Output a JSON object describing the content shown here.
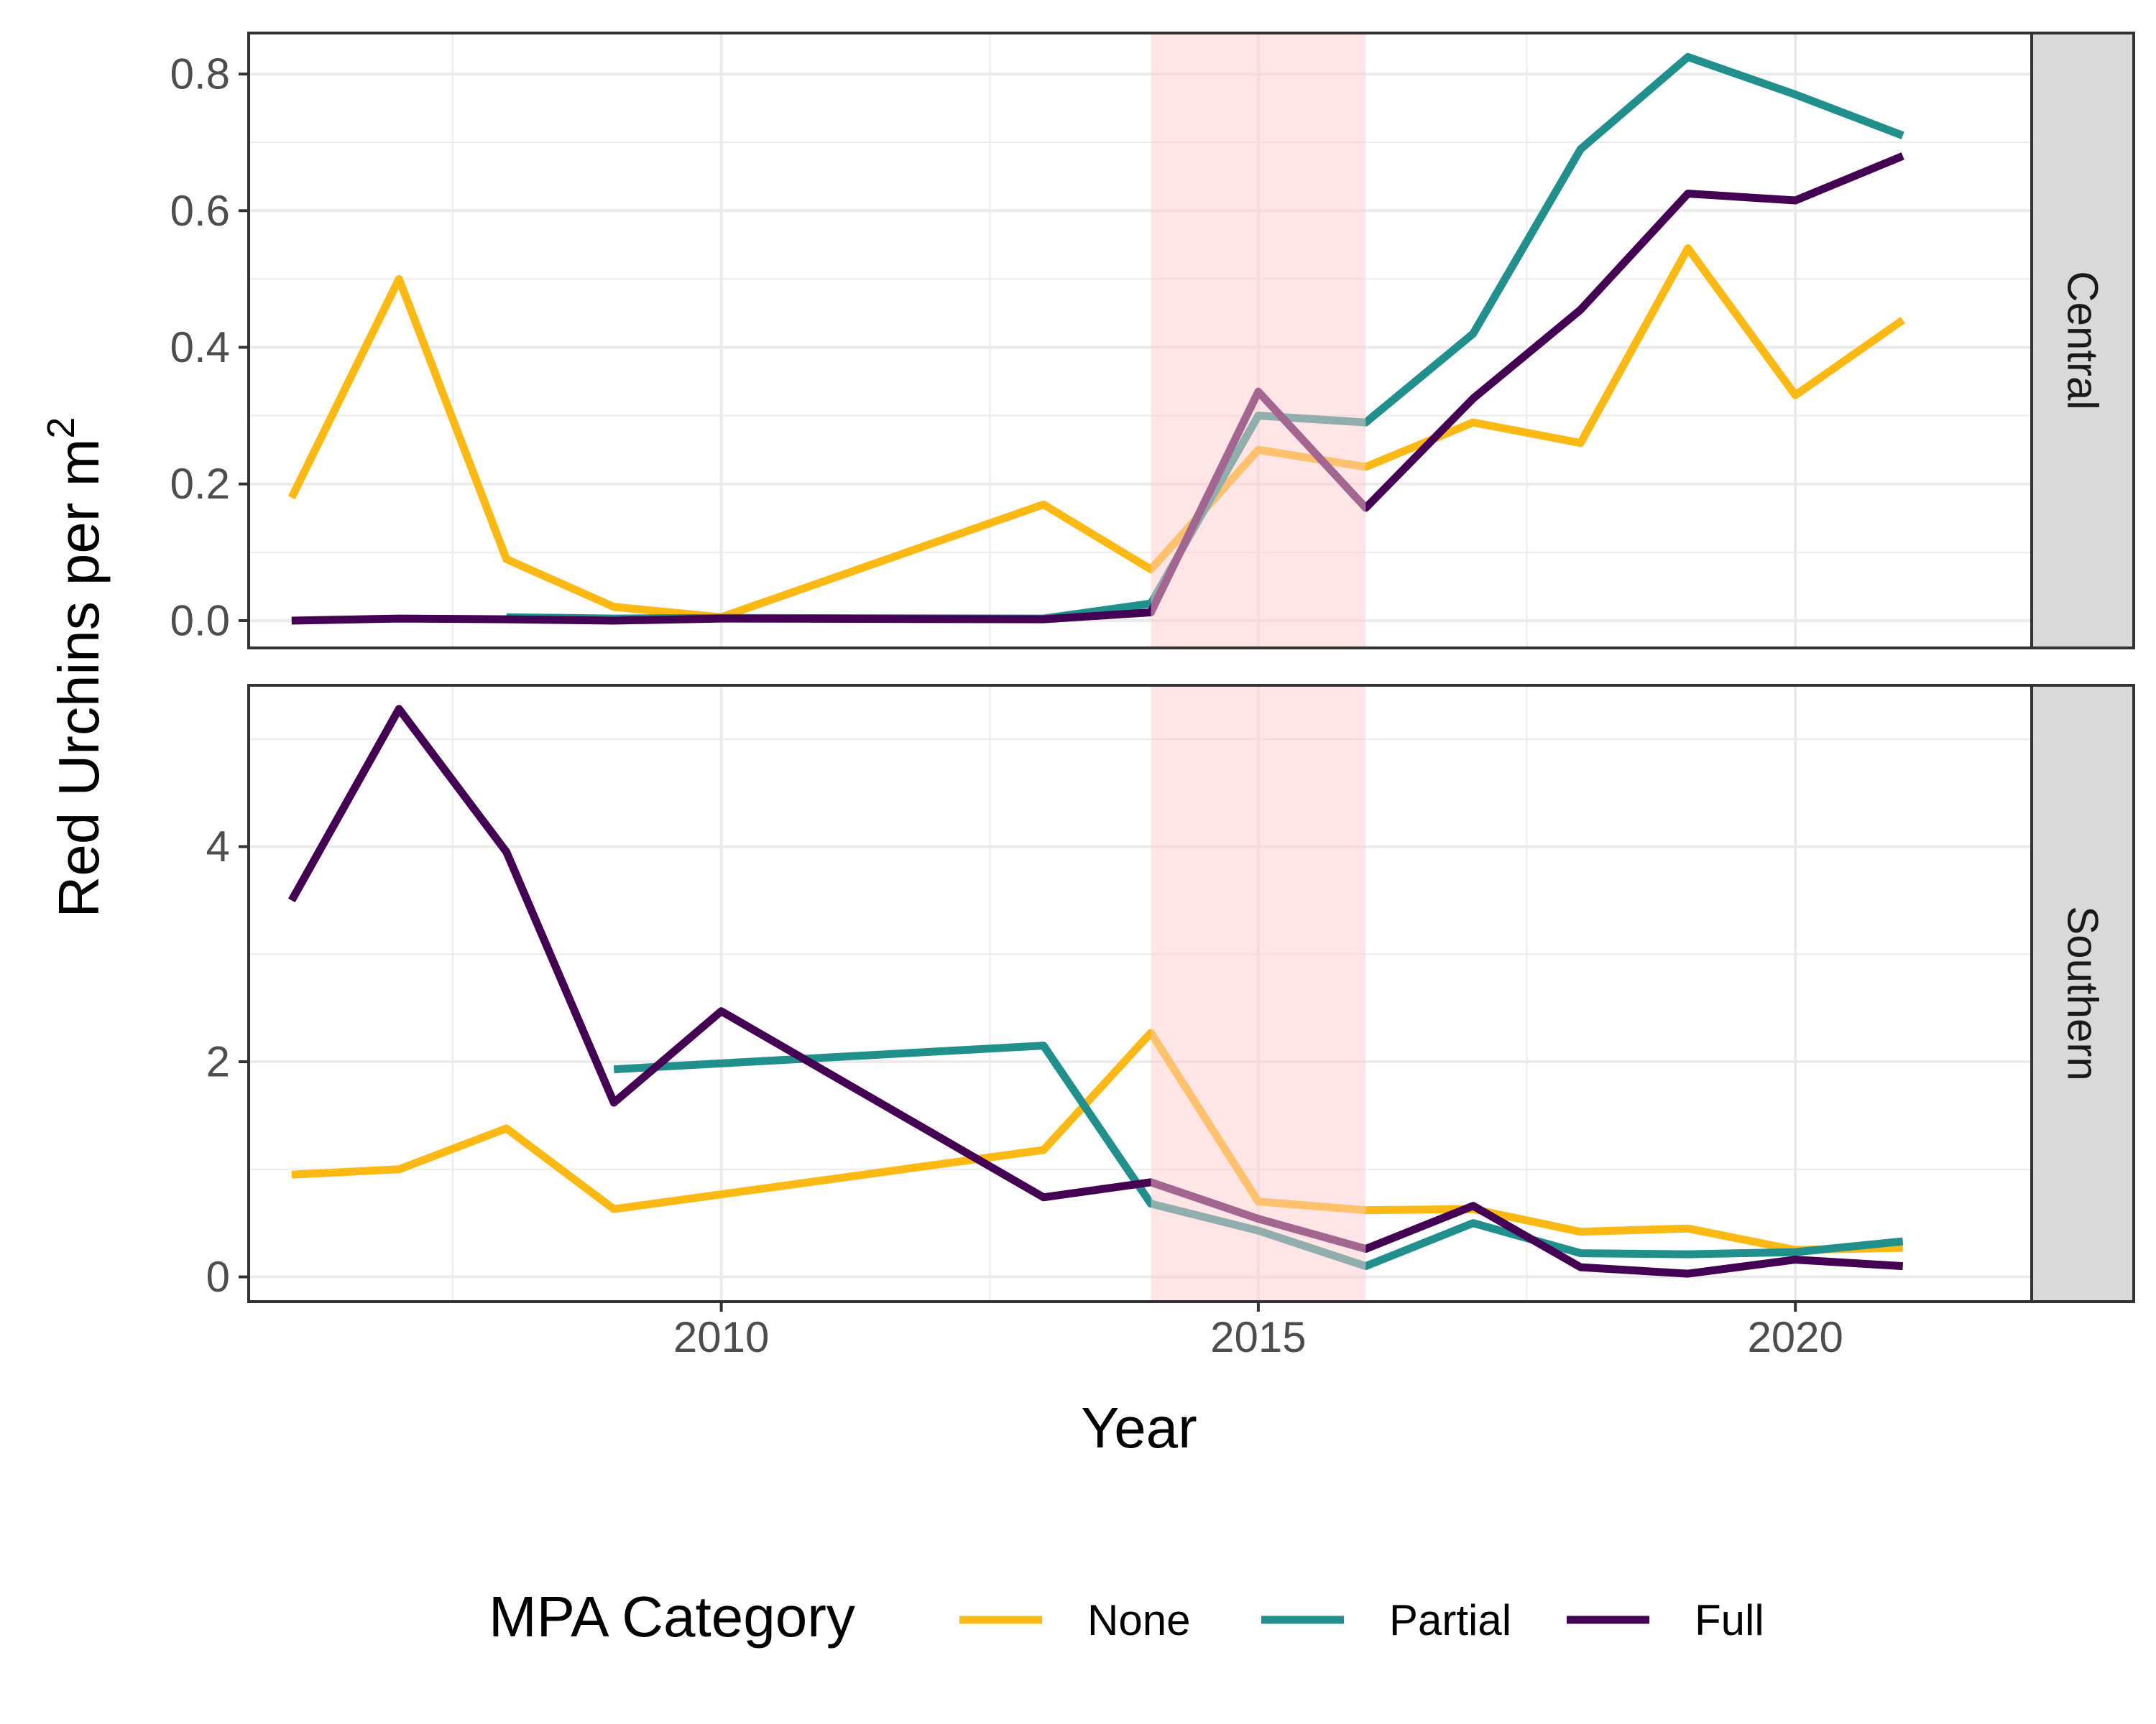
{
  "chart_data": {
    "type": "line",
    "xlabel": "Year",
    "ylabel_main": "Red Urchins per m",
    "ylabel_sup": "2",
    "xlim": [
      2005.6,
      2022.2
    ],
    "x_ticks": [
      2010,
      2015,
      2020
    ],
    "highlight": {
      "from": 2014,
      "to": 2016,
      "color": "#ffcccc"
    },
    "legend": {
      "title": "MPA Category",
      "position": "bottom"
    },
    "series_styles": [
      {
        "name": "None",
        "color": "#FDB913"
      },
      {
        "name": "Partial",
        "color": "#21908C"
      },
      {
        "name": "Full",
        "color": "#440154"
      }
    ],
    "panels": [
      {
        "label": "Central",
        "ylim": [
          -0.04,
          0.86
        ],
        "y_ticks": [
          0.0,
          0.2,
          0.4,
          0.6,
          0.8
        ],
        "y_tick_labels": [
          "0.0",
          "0.2",
          "0.4",
          "0.6",
          "0.8"
        ],
        "series": [
          {
            "name": "None",
            "points": [
              [
                2006,
                0.18
              ],
              [
                2007,
                0.5
              ],
              [
                2008,
                0.09
              ],
              [
                2009,
                0.02
              ],
              [
                2010,
                0.005
              ],
              [
                2013,
                0.17
              ],
              [
                2014,
                0.075
              ],
              [
                2015,
                0.25
              ],
              [
                2016,
                0.225
              ],
              [
                2017,
                0.29
              ],
              [
                2018,
                0.26
              ],
              [
                2019,
                0.545
              ],
              [
                2020,
                0.33
              ],
              [
                2021,
                0.44
              ]
            ]
          },
          {
            "name": "Partial",
            "points": [
              [
                2008,
                0.005
              ],
              [
                2009,
                0.003
              ],
              [
                2010,
                0.004
              ],
              [
                2013,
                0.003
              ],
              [
                2014,
                0.025
              ],
              [
                2015,
                0.3
              ],
              [
                2016,
                0.29
              ],
              [
                2017,
                0.42
              ],
              [
                2018,
                0.69
              ],
              [
                2019,
                0.825
              ],
              [
                2020,
                0.77
              ],
              [
                2021,
                0.71
              ]
            ]
          },
          {
            "name": "Full",
            "points": [
              [
                2006,
                0.0
              ],
              [
                2007,
                0.003
              ],
              [
                2008,
                0.002
              ],
              [
                2009,
                0.0
              ],
              [
                2010,
                0.003
              ],
              [
                2013,
                0.002
              ],
              [
                2014,
                0.012
              ],
              [
                2015,
                0.335
              ],
              [
                2016,
                0.165
              ],
              [
                2017,
                0.325
              ],
              [
                2018,
                0.455
              ],
              [
                2019,
                0.625
              ],
              [
                2020,
                0.615
              ],
              [
                2021,
                0.68
              ]
            ]
          }
        ]
      },
      {
        "label": "Southern",
        "ylim": [
          -0.23,
          5.5
        ],
        "y_ticks": [
          0,
          2,
          4
        ],
        "y_tick_labels": [
          "0",
          "2",
          "4"
        ],
        "series": [
          {
            "name": "None",
            "points": [
              [
                2006,
                0.95
              ],
              [
                2007,
                1.0
              ],
              [
                2008,
                1.38
              ],
              [
                2009,
                0.63
              ],
              [
                2013,
                1.18
              ],
              [
                2014,
                2.27
              ],
              [
                2015,
                0.7
              ],
              [
                2016,
                0.62
              ],
              [
                2017,
                0.63
              ],
              [
                2018,
                0.42
              ],
              [
                2019,
                0.45
              ],
              [
                2020,
                0.25
              ],
              [
                2021,
                0.27
              ]
            ]
          },
          {
            "name": "Partial",
            "points": [
              [
                2009,
                1.93
              ],
              [
                2013,
                2.15
              ],
              [
                2014,
                0.68
              ],
              [
                2015,
                0.43
              ],
              [
                2016,
                0.1
              ],
              [
                2017,
                0.5
              ],
              [
                2018,
                0.22
              ],
              [
                2019,
                0.21
              ],
              [
                2020,
                0.23
              ],
              [
                2021,
                0.33
              ]
            ]
          },
          {
            "name": "Full",
            "points": [
              [
                2006,
                3.5
              ],
              [
                2007,
                5.28
              ],
              [
                2008,
                3.95
              ],
              [
                2009,
                1.62
              ],
              [
                2010,
                2.47
              ],
              [
                2013,
                0.74
              ],
              [
                2014,
                0.88
              ],
              [
                2015,
                0.54
              ],
              [
                2016,
                0.26
              ],
              [
                2017,
                0.66
              ],
              [
                2018,
                0.09
              ],
              [
                2019,
                0.03
              ],
              [
                2020,
                0.16
              ],
              [
                2021,
                0.1
              ]
            ]
          }
        ]
      }
    ]
  }
}
